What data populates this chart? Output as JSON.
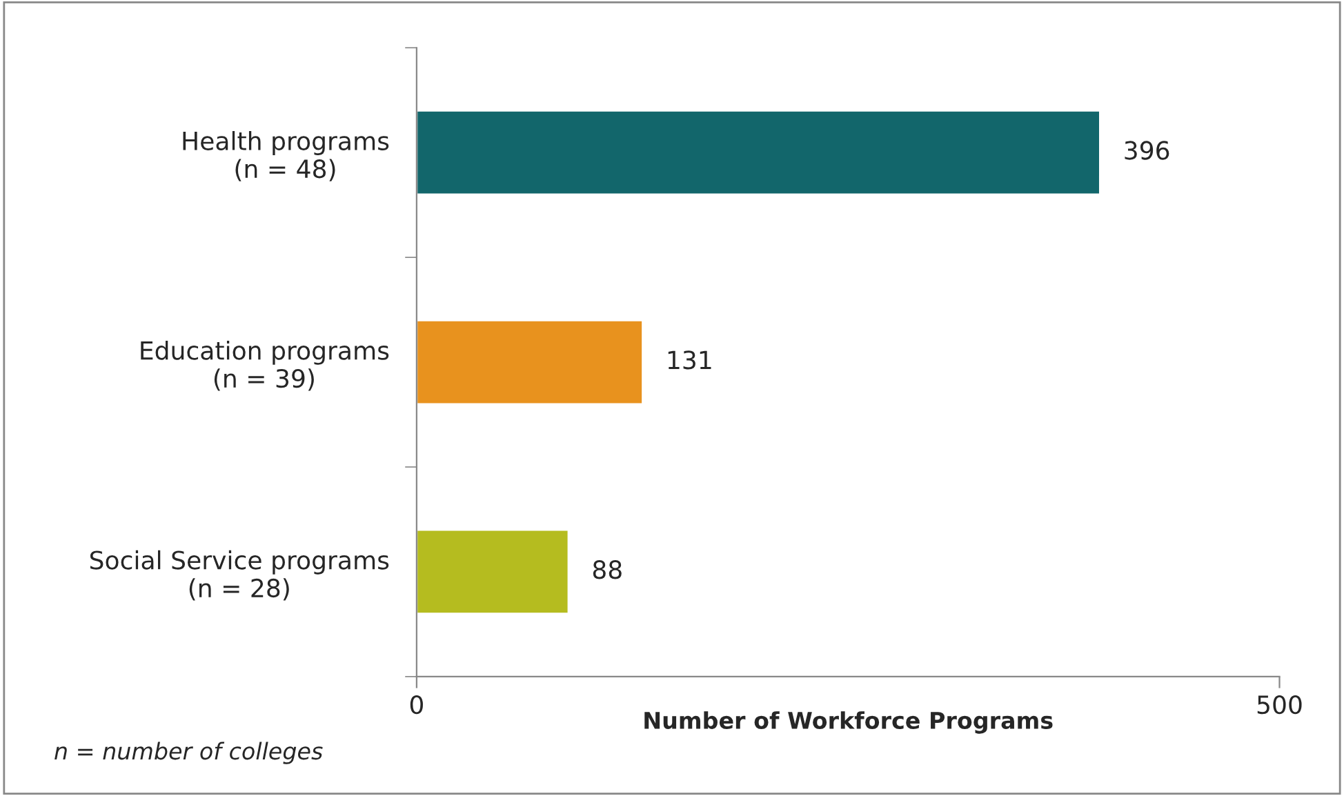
{
  "chart_data": {
    "type": "bar",
    "orientation": "horizontal",
    "categories": [
      "Health programs\n(n = 48)",
      "Education programs\n(n = 39)",
      "Social Service programs\n(n = 28)"
    ],
    "values": [
      396,
      131,
      88
    ],
    "colors": [
      "#12666b",
      "#e8921e",
      "#b5bc1f"
    ],
    "xlim": [
      0,
      500
    ],
    "xticks": [
      0,
      500
    ],
    "xlabel": "Number of Workforce Programs",
    "data_labels": true,
    "grid": false,
    "legend": false,
    "annotations": [
      "n = number of colleges"
    ]
  }
}
